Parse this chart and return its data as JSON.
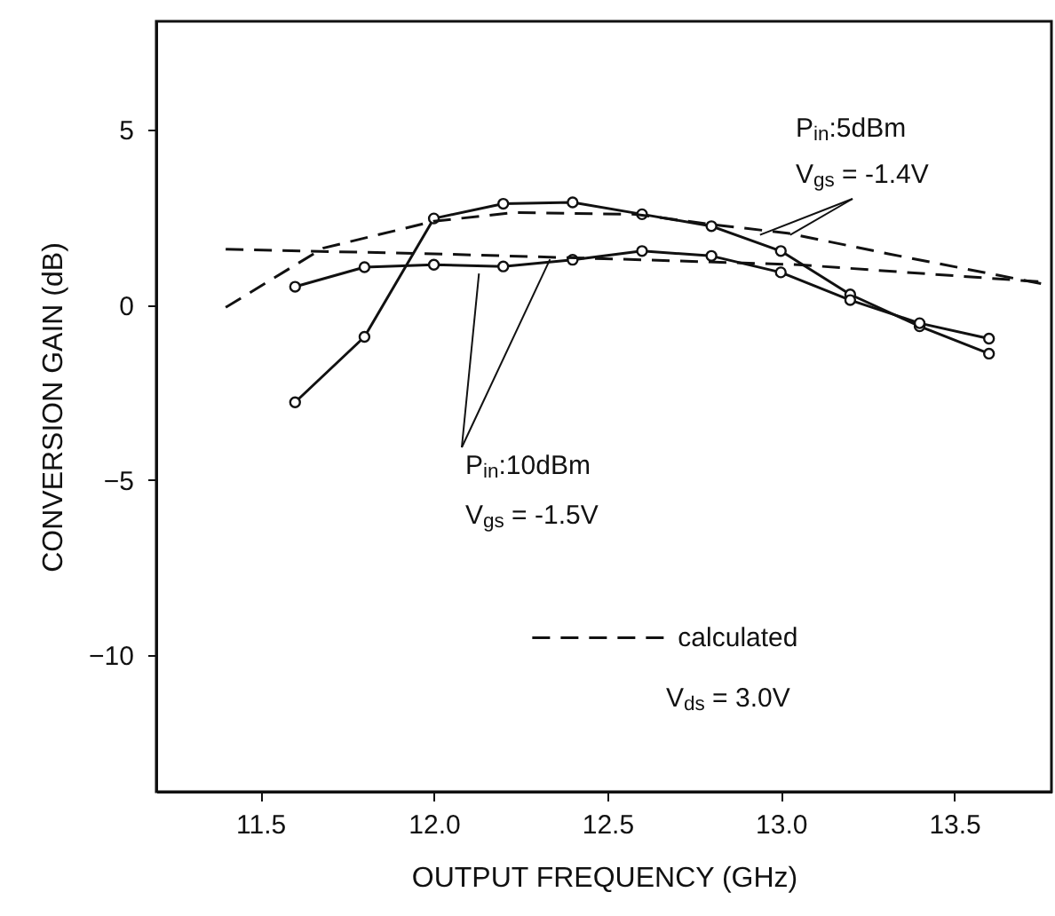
{
  "chart_data": {
    "type": "line",
    "xlabel": "OUTPUT FREQUENCY (GHz)",
    "ylabel": "CONVERSION GAIN (dB)",
    "xlim": [
      11.2,
      13.78
    ],
    "ylim": [
      -13.9,
      8.1
    ],
    "xticks": [
      {
        "value": 11.5,
        "label": "11.5"
      },
      {
        "value": 12.0,
        "label": "12.0"
      },
      {
        "value": 12.5,
        "label": "12.5"
      },
      {
        "value": 13.0,
        "label": "13.0"
      },
      {
        "value": 13.5,
        "label": "13.5"
      }
    ],
    "yticks": [
      5,
      0,
      -5,
      -10
    ],
    "grid": false,
    "legend": "bottom",
    "series": [
      {
        "color": "#111111",
        "marker": "circle",
        "line_style": "solid",
        "x": [
          11.6,
          11.8,
          12.0,
          12.2,
          12.4,
          12.6,
          12.8,
          13.0,
          13.2,
          13.4,
          13.6
        ],
        "values": [
          -2.78,
          -0.91,
          2.47,
          2.89,
          2.93,
          2.59,
          2.25,
          1.54,
          0.3,
          -0.61,
          -1.39
        ]
      },
      {
        "color": "#111111",
        "marker": "circle",
        "line_style": "solid",
        "x": [
          11.6,
          11.8,
          12.0,
          12.2,
          12.4,
          12.6,
          12.8,
          13.0,
          13.2,
          13.4,
          13.6
        ],
        "values": [
          0.52,
          1.08,
          1.15,
          1.1,
          1.29,
          1.54,
          1.4,
          0.93,
          0.14,
          -0.52,
          -0.96
        ]
      },
      {
        "name": "calculated",
        "color": "#111111",
        "marker": "none",
        "line_style": "dashed",
        "x": [
          11.4,
          11.68,
          12.0,
          12.23,
          12.58,
          12.8,
          13.02,
          13.31,
          13.75
        ],
        "values": [
          -0.07,
          1.62,
          2.39,
          2.64,
          2.59,
          2.3,
          2.05,
          1.46,
          0.61
        ]
      },
      {
        "color": "#111111",
        "marker": "none",
        "line_style": "dashed",
        "x": [
          11.4,
          12.0,
          12.6,
          13.05,
          13.75
        ],
        "values": [
          1.59,
          1.46,
          1.29,
          1.15,
          0.66
        ]
      }
    ],
    "annotations": [
      "P$_{in}$:5dBm",
      {
        "text": "V$_{gs}$ = -1.4V",
        "x": 12.94,
        "y": 2.0
      },
      {
        "text": "P$_{in}$:10dBm",
        "x": 12.13,
        "y": 0.9
      },
      "V$_{gs}$ = -1.5V",
      "V$_{ds}$ = 3.0V"
    ]
  }
}
